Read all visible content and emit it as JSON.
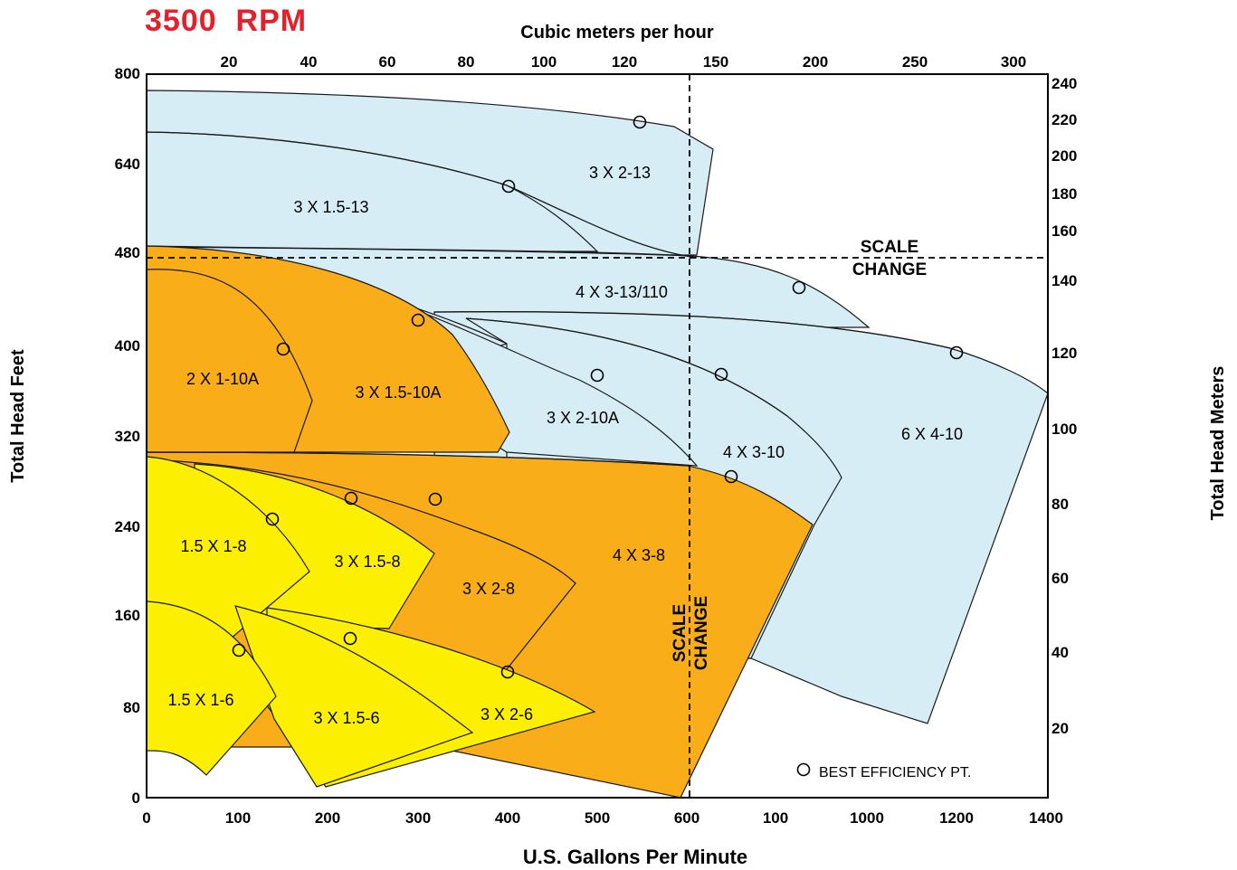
{
  "title": "3500  RPM",
  "colors": {
    "light_blue": "#d6edf5",
    "orange": "#f9ae19",
    "yellow": "#fcf000",
    "title_red": "#e4202a"
  },
  "chart_data": {
    "type": "area",
    "title": "3500  RPM",
    "xlabel": "U.S. Gallons Per Minute",
    "ylabel": "Total Head Feet",
    "x2label": "Cubic meters per hour",
    "y2label": "Total Head Meters",
    "x_ticks": [
      "0",
      "100",
      "200",
      "300",
      "400",
      "500",
      "600",
      "100",
      "1000",
      "1200",
      "1400"
    ],
    "y_ticks": [
      "0",
      "80",
      "160",
      "240",
      "320",
      "400",
      "480",
      "640",
      "800"
    ],
    "x2_ticks": [
      "20",
      "40",
      "60",
      "80",
      "100",
      "120",
      "150",
      "200",
      "250",
      "300"
    ],
    "y2_ticks": [
      "20",
      "40",
      "60",
      "80",
      "100",
      "120",
      "140",
      "160",
      "180",
      "200",
      "220",
      "240"
    ],
    "grid": false,
    "legend": "bottom-right",
    "legend_label": "BEST EFFICIENCY PT.",
    "scale_change_label": "SCALE CHANGE",
    "scale_change_h": {
      "line1": "SCALE",
      "line2": "CHANGE"
    },
    "scale_change_v": {
      "line1": "SCALE",
      "line2": "CHANGE"
    },
    "regions": [
      {
        "name": "3 X 2-13",
        "color": "light_blue",
        "bep_gpm": 550,
        "bep_head_ft": 700
      },
      {
        "name": "3 X 1.5-13",
        "color": "light_blue",
        "bep_gpm": 400,
        "bep_head_ft": 620
      },
      {
        "name": "4 X 3-13/110",
        "color": "light_blue",
        "bep_m3h": 195,
        "bep_head_m": 143
      },
      {
        "name": "6 X 4-10",
        "color": "light_blue",
        "bep_m3h": 280,
        "bep_head_m": 120
      },
      {
        "name": "4 X 3-10",
        "color": "light_blue",
        "bep_m3h": 145,
        "bep_head_m": 112
      },
      {
        "name": "3 X 2-10A",
        "color": "light_blue",
        "bep_gpm": 500,
        "bep_head_ft": 372
      },
      {
        "name": "3 X 1.5-10A",
        "color": "orange",
        "bep_gpm": 300,
        "bep_head_ft": 422
      },
      {
        "name": "2 X 1-10A",
        "color": "orange",
        "bep_gpm": 150,
        "bep_head_ft": 396
      },
      {
        "name": "4 X 3-8",
        "color": "orange",
        "bep_gpm": 650,
        "bep_head_ft": 282
      },
      {
        "name": "3 X 2-8",
        "color": "orange",
        "bep_gpm": 320,
        "bep_head_ft": 262
      },
      {
        "name": "3 X 1.5-8",
        "color": "yellow",
        "bep_gpm": 225,
        "bep_head_ft": 264
      },
      {
        "name": "1.5 X 1-8",
        "color": "yellow",
        "bep_gpm": 140,
        "bep_head_ft": 244
      },
      {
        "name": "3 X 2-6",
        "color": "yellow",
        "bep_gpm": 400,
        "bep_head_ft": 110
      },
      {
        "name": "3 X 1.5-6",
        "color": "yellow",
        "bep_gpm": 225,
        "bep_head_ft": 140
      },
      {
        "name": "1.5 X 1-6",
        "color": "yellow",
        "bep_gpm": 100,
        "bep_head_ft": 128
      }
    ]
  }
}
